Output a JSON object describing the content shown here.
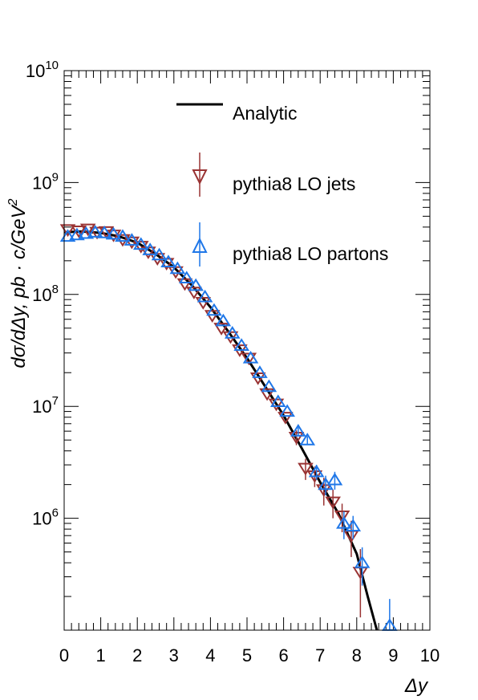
{
  "chart_data": {
    "type": "scatter",
    "title": "",
    "xlabel": "Δy",
    "ylabel": "dσ/dΔy, pb · c/GeV",
    "ylabel_exp": "2",
    "xlim": [
      0,
      10
    ],
    "ylim_log": [
      100000,
      10000000000
    ],
    "yscale": "log",
    "x_ticks": [
      "0",
      "1",
      "2",
      "3",
      "4",
      "5",
      "6",
      "7",
      "8",
      "9",
      "10"
    ],
    "y_ticks": [
      {
        "base": "10",
        "exp": "6",
        "value": 1000000
      },
      {
        "base": "10",
        "exp": "7",
        "value": 10000000
      },
      {
        "base": "10",
        "exp": "8",
        "value": 100000000
      },
      {
        "base": "10",
        "exp": "9",
        "value": 1000000000
      },
      {
        "base": "10",
        "exp": "10",
        "value": 10000000000
      }
    ],
    "legend": {
      "position": "top-right",
      "entries": [
        {
          "label": "Analytic",
          "style": "line",
          "color": "#000000"
        },
        {
          "label": "pythia8 LO jets",
          "style": "triangle-down",
          "color": "#993333"
        },
        {
          "label": "pythia8 LO partons",
          "style": "triangle-up",
          "color": "#1f77e8"
        }
      ]
    },
    "series": [
      {
        "name": "Analytic",
        "kind": "line",
        "color": "#000000",
        "x": [
          0,
          0.5,
          1.0,
          1.5,
          2.0,
          2.5,
          3.0,
          3.5,
          4.0,
          4.5,
          5.0,
          5.5,
          6.0,
          6.5,
          7.0,
          7.5,
          8.0,
          8.3,
          8.5,
          8.55
        ],
        "y": [
          360000000,
          365000000,
          355000000,
          330000000,
          290000000,
          230000000,
          175000000,
          120000000,
          77000000,
          46000000,
          27000000,
          15000000,
          8300000,
          4200000,
          2100000,
          1100000,
          480000,
          200000,
          115000,
          100000
        ]
      },
      {
        "name": "pythia8 LO jets",
        "kind": "points",
        "marker": "triangle-down",
        "color": "#993333",
        "x": [
          0.1,
          0.4,
          0.65,
          0.9,
          1.15,
          1.35,
          1.6,
          1.85,
          2.1,
          2.3,
          2.55,
          2.8,
          3.05,
          3.3,
          3.55,
          3.8,
          4.05,
          4.3,
          4.55,
          4.8,
          5.05,
          5.3,
          5.55,
          5.8,
          6.05,
          6.35,
          6.6,
          6.85,
          7.1,
          7.35,
          7.6,
          7.85,
          8.1
        ],
        "y": [
          380000000,
          370000000,
          385000000,
          360000000,
          365000000,
          340000000,
          310000000,
          295000000,
          270000000,
          240000000,
          210000000,
          190000000,
          160000000,
          125000000,
          105000000,
          85000000,
          65000000,
          50000000,
          42000000,
          32000000,
          27000000,
          18000000,
          13000000,
          10500000,
          8000000,
          5300000,
          2800000,
          2400000,
          1800000,
          1400000,
          1050000,
          700000,
          330000
        ],
        "err": [
          0,
          0,
          0,
          0,
          0,
          0,
          0,
          0,
          0,
          0,
          0,
          0,
          0,
          0,
          0,
          0,
          0,
          0,
          0,
          0,
          0,
          0,
          0,
          0,
          0,
          800000,
          600000,
          500000,
          500000,
          400000,
          300000,
          250000,
          200000
        ]
      },
      {
        "name": "pythia8 LO partons",
        "kind": "points",
        "marker": "triangle-up",
        "color": "#1f77e8",
        "x": [
          0.1,
          0.35,
          0.6,
          0.85,
          1.1,
          1.35,
          1.6,
          1.85,
          2.1,
          2.35,
          2.6,
          2.85,
          3.1,
          3.35,
          3.6,
          3.85,
          4.1,
          4.35,
          4.6,
          4.85,
          5.1,
          5.35,
          5.6,
          5.85,
          6.1,
          6.4,
          6.65,
          6.9,
          7.15,
          7.4,
          7.65,
          7.9,
          8.15,
          8.9
        ],
        "y": [
          330000000,
          340000000,
          350000000,
          360000000,
          355000000,
          345000000,
          330000000,
          305000000,
          280000000,
          250000000,
          225000000,
          195000000,
          170000000,
          140000000,
          120000000,
          95000000,
          72000000,
          58000000,
          45000000,
          35000000,
          27000000,
          20000000,
          15000000,
          11000000,
          9000000,
          6000000,
          5000000,
          2600000,
          2000000,
          2200000,
          900000,
          850000,
          400000,
          110000
        ],
        "err": [
          0,
          0,
          0,
          0,
          0,
          0,
          0,
          0,
          0,
          0,
          0,
          0,
          0,
          0,
          0,
          0,
          0,
          0,
          0,
          0,
          0,
          0,
          0,
          0,
          0,
          500000,
          400000,
          400000,
          400000,
          400000,
          250000,
          200000,
          150000,
          80000
        ]
      }
    ]
  }
}
